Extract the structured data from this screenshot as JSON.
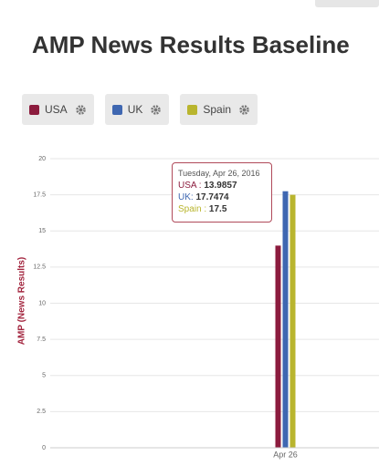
{
  "chart_data": {
    "type": "bar",
    "title": "AMP News Results Baseline",
    "y_label": "AMP (News Results)",
    "categories": [
      "Apr 26"
    ],
    "series": [
      {
        "name": "USA",
        "color": "#8c1c3e",
        "values": [
          13.9857
        ]
      },
      {
        "name": "UK",
        "color": "#3f67b1",
        "values": [
          17.7474
        ]
      },
      {
        "name": "Spain",
        "color": "#b9b52e",
        "values": [
          17.5
        ]
      }
    ],
    "ylim": [
      0,
      20
    ],
    "yticks": [
      0,
      2.5,
      5,
      7.5,
      10,
      12.5,
      15,
      17.5,
      20
    ],
    "grid": true,
    "tooltip": {
      "title": "Tuesday, Apr 26, 2016",
      "labels": [
        "USA :",
        "UK:",
        "Spain :"
      ]
    }
  }
}
